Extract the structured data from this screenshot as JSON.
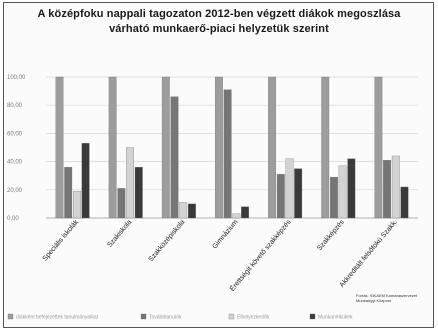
{
  "chart_data": {
    "type": "bar",
    "title": "A középfoku nappali tagozaton 2012-ben végzett diákok megoszlása",
    "subtitle": "várható munkaerő-piaci helyzetük szerint",
    "categories": [
      "Speciális iskolák",
      "Szakiskola",
      "Szakközépiskola",
      "Gimnázium",
      "Érettségit követő szakképzés",
      "Szakképzés",
      "Akkreditált felsőfokú Szakk."
    ],
    "y_tick_labels": [
      "0,00",
      "20,00",
      "40,00",
      "60,00",
      "80,00",
      "100,00"
    ],
    "ylim": [
      0,
      100
    ],
    "series": [
      {
        "name": "diákként befejezettek tanulmányaikat",
        "color": "#9d9d9d",
        "values": [
          100,
          100,
          100,
          100,
          100,
          100,
          100
        ]
      },
      {
        "name": "Továbbtanulók",
        "color": "#767676",
        "values": [
          36,
          21,
          86,
          91,
          31,
          29,
          41
        ]
      },
      {
        "name": "Elhelyezkedők",
        "color": "#d3d3d3",
        "values": [
          19,
          50,
          11,
          3,
          42,
          37,
          44
        ]
      },
      {
        "name": "Munkanélküliek",
        "color": "#3a3a3a",
        "values": [
          53,
          36,
          10,
          8,
          35,
          42,
          22
        ]
      }
    ],
    "legend_position": "bottom",
    "grid": true,
    "source_note": [
      "Forrás: SIKAEM Kamaraszervezet",
      "Munkaügyi Központ"
    ]
  }
}
